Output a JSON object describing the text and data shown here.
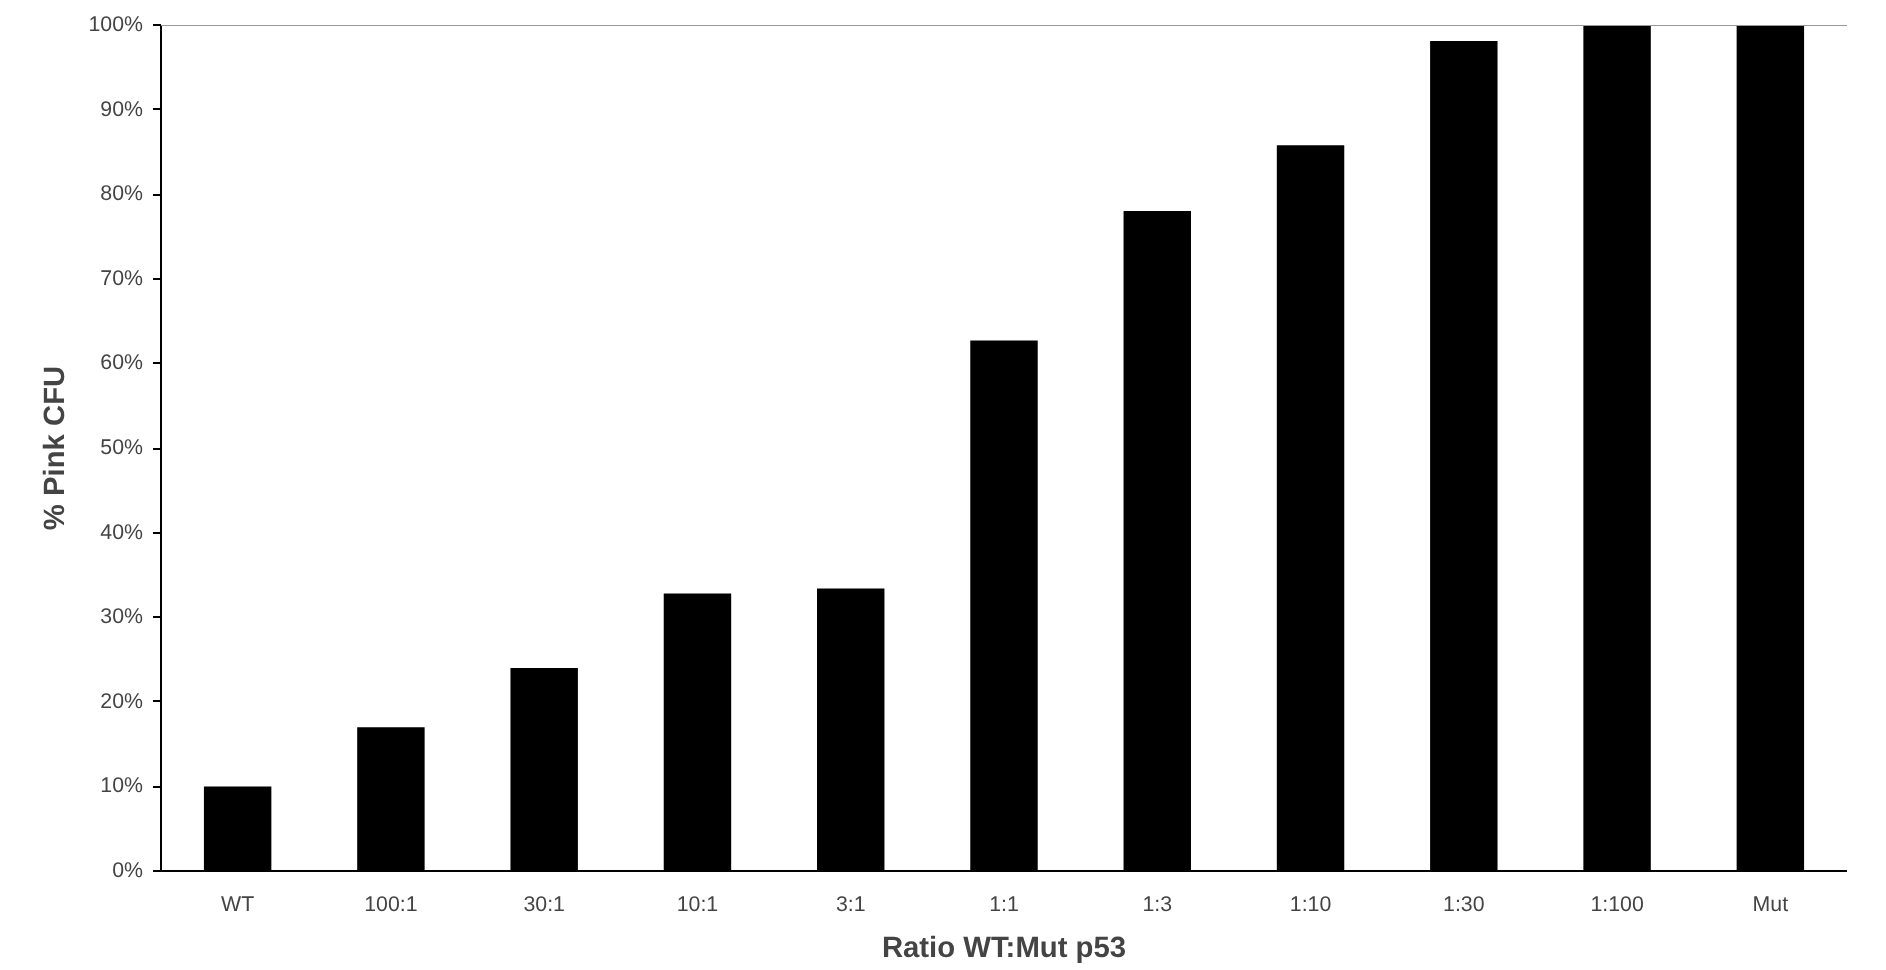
{
  "chart_data": {
    "type": "bar",
    "xlabel": "Ratio WT:Mut p53",
    "ylabel": "% Pink CFU",
    "categories": [
      "WT",
      "100:1",
      "30:1",
      "10:1",
      "3:1",
      "1:1",
      "1:3",
      "1:10",
      "1:30",
      "1:100",
      "Mut"
    ],
    "values": [
      10,
      17,
      24,
      32.8,
      33.4,
      62.7,
      78,
      85.8,
      98.1,
      100,
      100
    ],
    "color": "#000000",
    "ylim": [
      0,
      100
    ],
    "yticks": [
      {
        "value": 0,
        "label": "0%"
      },
      {
        "value": 10,
        "label": "10%"
      },
      {
        "value": 20,
        "label": "20%"
      },
      {
        "value": 30,
        "label": "30%"
      },
      {
        "value": 40,
        "label": "40%"
      },
      {
        "value": 50,
        "label": "50%"
      },
      {
        "value": 60,
        "label": "60%"
      },
      {
        "value": 70,
        "label": "70%"
      },
      {
        "value": 80,
        "label": "80%"
      },
      {
        "value": 90,
        "label": "90%"
      },
      {
        "value": 100,
        "label": "100%"
      }
    ],
    "grid": false
  }
}
